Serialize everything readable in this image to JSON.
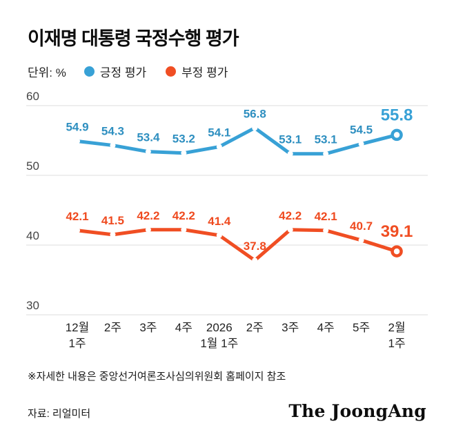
{
  "chart_data": {
    "type": "line",
    "title": "이재명 대통령 국정수행 평가",
    "unit_label": "단위: %",
    "categories": [
      [
        "12월",
        "1주"
      ],
      [
        "2주"
      ],
      [
        "3주"
      ],
      [
        "4주"
      ],
      [
        "2026",
        "1월 1주"
      ],
      [
        "2주"
      ],
      [
        "3주"
      ],
      [
        "4주"
      ],
      [
        "5주"
      ],
      [
        "2월",
        "1주"
      ]
    ],
    "series": [
      {
        "name": "긍정 평가",
        "color": "#38a1d6",
        "label_color": "#2e8fc0",
        "values": [
          54.9,
          54.3,
          53.4,
          53.2,
          54.1,
          56.8,
          53.1,
          53.1,
          54.5,
          55.8
        ],
        "last_value_label": "55.8"
      },
      {
        "name": "부정 평가",
        "color": "#f04e23",
        "label_color": "#ef4a1f",
        "values": [
          42.1,
          41.5,
          42.2,
          42.2,
          41.4,
          37.8,
          42.2,
          42.1,
          40.7,
          39.1
        ],
        "last_value_label": "39.1"
      }
    ],
    "ylim": [
      30,
      60
    ],
    "yticks": [
      60,
      50,
      40,
      30
    ],
    "grid": true,
    "gridline_color": "#dcdcdc",
    "legend_position": "top"
  },
  "footer": {
    "note": "※자세한 내용은 중앙선거여론조사심의위원회 홈페이지 참조",
    "source": "자료: 리얼미터",
    "logo": "The JoongAng"
  }
}
